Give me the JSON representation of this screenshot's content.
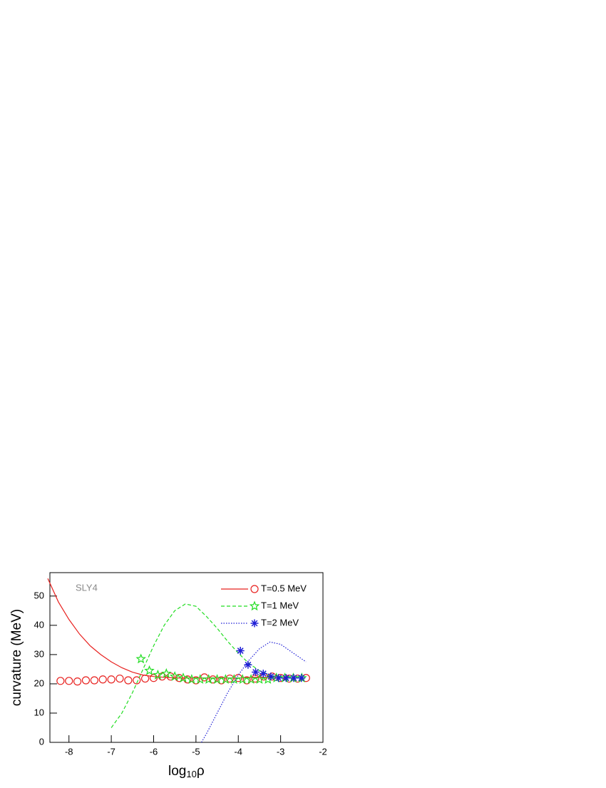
{
  "chart_data": {
    "type": "line",
    "annotation": "SLY4",
    "x_label": {
      "base": "log",
      "subscript": "10",
      "variable": "ρ"
    },
    "y_label": "curvature (MeV)",
    "xlim": [
      -8.45,
      -2
    ],
    "xticks": [
      -8,
      -7,
      -6,
      -5,
      -4,
      -3,
      -2
    ],
    "ylim": [
      0,
      58
    ],
    "yticks": [
      0,
      10,
      20,
      30,
      40,
      50
    ],
    "legend": "top-right",
    "series": [
      {
        "name": "T=0.5 MeV",
        "color": "#e8211f",
        "line_style": "solid",
        "marker": "circle",
        "x": [
          -8.5,
          -8.25,
          -8,
          -7.75,
          -7.5,
          -7.25,
          -7,
          -6.75,
          -6.5,
          -6.25,
          -6,
          -5.5,
          -5,
          -4.5,
          -4,
          -3.5,
          -3,
          -2.6
        ],
        "values": [
          56,
          48,
          42,
          37,
          33,
          30,
          27.5,
          25.5,
          24,
          23,
          22.5,
          22,
          22,
          22,
          22,
          22.3,
          22,
          22
        ],
        "marker_x": [
          -8.2,
          -8.0,
          -7.8,
          -7.6,
          -7.4,
          -7.2,
          -7.0,
          -6.8,
          -6.6,
          -6.4,
          -6.2,
          -6.0,
          -5.8,
          -5.6,
          -5.4,
          -5.2,
          -5.0,
          -4.8,
          -4.6,
          -4.4,
          -4.2,
          -4.0,
          -3.8,
          -3.6,
          -3.4,
          -3.2,
          -3.0,
          -2.8,
          -2.6,
          -2.4
        ],
        "marker_values": [
          21,
          21,
          20.8,
          21.2,
          21.2,
          21.5,
          21.5,
          21.8,
          21.2,
          21.2,
          21.8,
          22,
          22.5,
          22.5,
          22,
          21.5,
          21.2,
          22.2,
          21.5,
          21.2,
          21.8,
          22,
          21.2,
          21.8,
          22.5,
          22.5,
          22,
          21.8,
          21.8,
          22
        ]
      },
      {
        "name": "T=1 MeV",
        "color": "#22dd22",
        "line_style": "dashed",
        "marker": "star",
        "x": [
          -7,
          -6.75,
          -6.5,
          -6.25,
          -6,
          -5.75,
          -5.5,
          -5.25,
          -5,
          -4.75,
          -4.5,
          -4.25,
          -4,
          -3.75,
          -3.5,
          -3.25,
          -3,
          -2.75,
          -2.5,
          -2.4
        ],
        "values": [
          5,
          10,
          17,
          25,
          33,
          40,
          45,
          47.3,
          46.5,
          43,
          39,
          34.5,
          30.5,
          27,
          24.5,
          23,
          22.2,
          22,
          22,
          22
        ],
        "marker_x": [
          -6.3,
          -6.1,
          -5.9,
          -5.7,
          -5.5,
          -5.3,
          -5.1,
          -4.9,
          -4.7,
          -4.5,
          -4.3,
          -4.1,
          -3.9,
          -3.7,
          -3.5,
          -3.3,
          -3.1,
          -2.9,
          -2.7,
          -2.5
        ],
        "marker_values": [
          28.5,
          24.5,
          23,
          23.5,
          22.5,
          22,
          21.5,
          21.5,
          21.5,
          21.5,
          21.5,
          21.5,
          21.5,
          21.5,
          21.5,
          21.5,
          22,
          22,
          22,
          22
        ]
      },
      {
        "name": "T=2 MeV",
        "color": "#1f1fd6",
        "line_style": "dotted",
        "marker": "asterisk",
        "x": [
          -4.87,
          -4.75,
          -4.5,
          -4.25,
          -4,
          -3.75,
          -3.5,
          -3.25,
          -3,
          -2.75,
          -2.5,
          -2.4
        ],
        "values": [
          0,
          3,
          10,
          17,
          23,
          28,
          32,
          34.3,
          33.5,
          31,
          28.5,
          27.5
        ],
        "marker_x": [
          -3.95,
          -3.77,
          -3.59,
          -3.41,
          -3.23,
          -3.05,
          -2.87,
          -2.69,
          -2.51
        ],
        "marker_values": [
          31.3,
          26.5,
          24,
          23.5,
          22.5,
          22,
          22,
          22,
          22
        ]
      }
    ]
  }
}
